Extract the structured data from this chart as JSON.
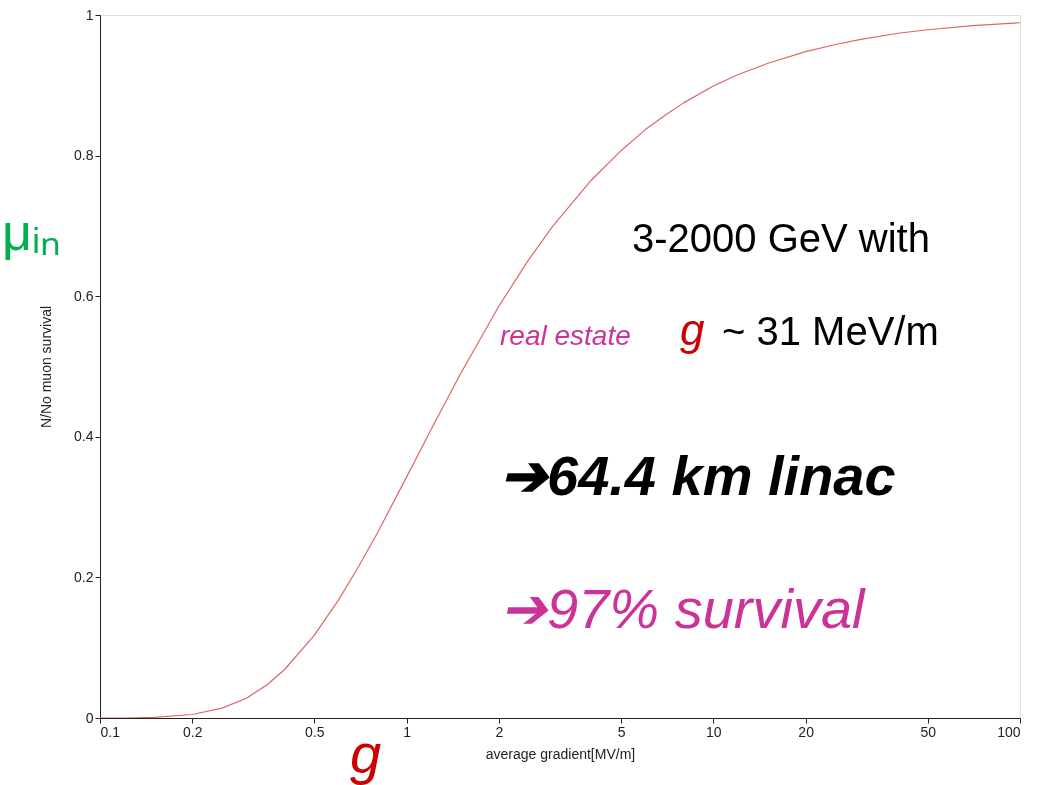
{
  "chart_data": {
    "type": "line",
    "xlabel": "average gradient[MV/m]",
    "ylabel": "N/No muon survival",
    "log": "x",
    "grid": false,
    "marker": "none",
    "line_style": "solid",
    "xlim": [
      0.1,
      100
    ],
    "xticks": [
      0.1,
      0.2,
      0.5,
      1,
      2,
      5,
      10,
      20,
      50,
      100
    ],
    "ylim": [
      0,
      1
    ],
    "yticks": [
      0,
      0.2,
      0.4,
      0.6,
      0.8,
      1
    ],
    "x": [
      0.1,
      0.12,
      0.15,
      0.2,
      0.25,
      0.3,
      0.35,
      0.4,
      0.5,
      0.6,
      0.7,
      0.8,
      1,
      1.2,
      1.5,
      2,
      2.5,
      3,
      4,
      5,
      6,
      7,
      8,
      10,
      12,
      15,
      20,
      25,
      30,
      40,
      50,
      70,
      100
    ],
    "series": [
      {
        "color": "#e06666",
        "values": [
          0,
          0,
          0.001,
          0.005,
          0.014,
          0.028,
          0.047,
          0.069,
          0.118,
          0.168,
          0.217,
          0.262,
          0.343,
          0.41,
          0.49,
          0.586,
          0.652,
          0.7,
          0.765,
          0.807,
          0.837,
          0.858,
          0.875,
          0.899,
          0.915,
          0.931,
          0.948,
          0.958,
          0.965,
          0.974,
          0.979,
          0.985,
          0.989
        ]
      }
    ],
    "annotations": [
      "μᵢₙ",
      "3-2000 GeV with",
      "real estate",
      "g",
      "~ 31 MeV/m",
      "➔64.4 km linac",
      "➔97% survival",
      "g"
    ]
  }
}
